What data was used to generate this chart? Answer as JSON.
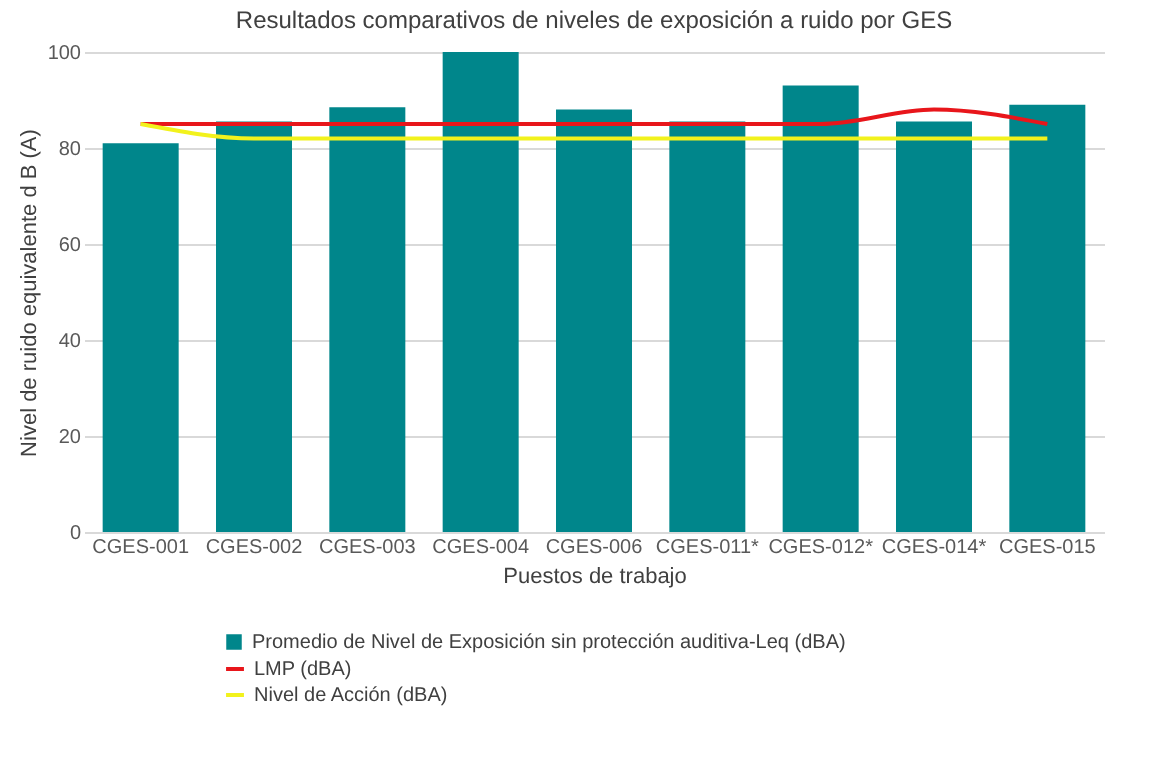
{
  "chart_data": {
    "type": "bar",
    "title": "Resultados comparativos de niveles de exposición a ruido por GES",
    "xlabel": "Puestos de trabajo",
    "ylabel": "Nivel de ruido equivalente d B (A)",
    "categories": [
      "CGES-001",
      "CGES-002",
      "CGES-003",
      "CGES-004",
      "CGES-006",
      "CGES-011*",
      "CGES-012*",
      "CGES-014*",
      "CGES-015"
    ],
    "series": [
      {
        "name": "Promedio de Nivel de Exposición sin protección auditiva-Leq (dBA)",
        "color": "#00868b",
        "values": [
          81,
          85.5,
          88.5,
          100,
          88,
          85.5,
          93,
          85.5,
          89
        ]
      },
      {
        "name": "LMP (dBA)",
        "type": "line",
        "color": "#e8161b",
        "values": [
          85,
          85,
          85,
          85,
          85,
          85,
          85,
          88,
          85
        ]
      },
      {
        "name": "Nivel de Acción (dBA)",
        "type": "line",
        "color": "#f2f21c",
        "values": [
          85,
          82,
          82,
          82,
          82,
          82,
          82,
          82,
          82
        ]
      }
    ],
    "ylim": [
      0,
      100
    ],
    "yticks": [
      0,
      20,
      40,
      60,
      80,
      100
    ],
    "grid": "y",
    "legend": "bottom"
  }
}
